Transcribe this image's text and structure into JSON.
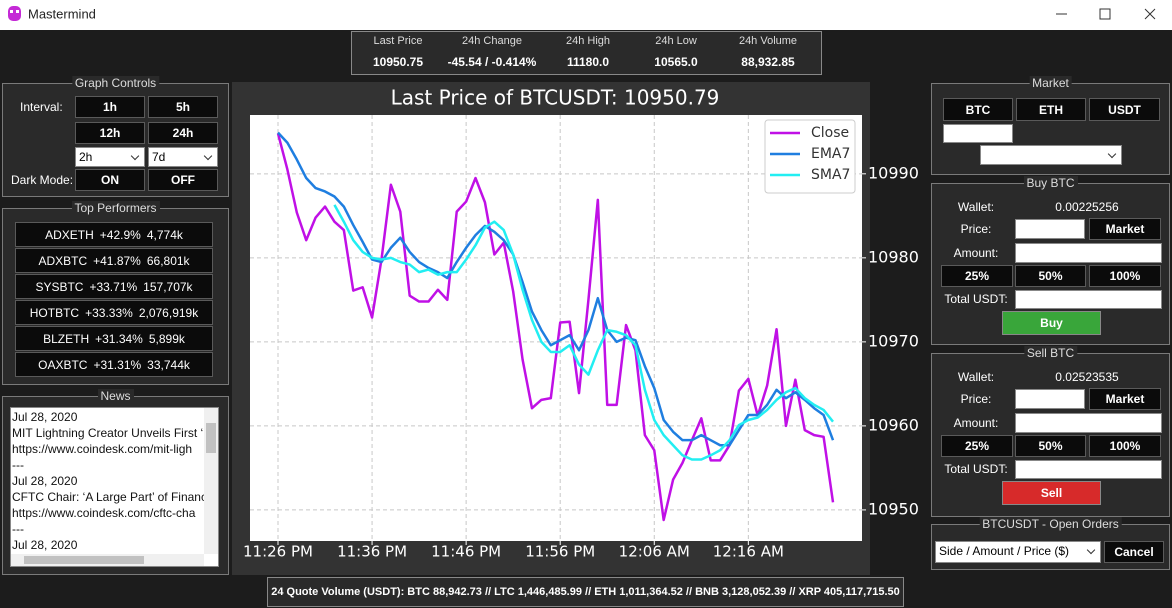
{
  "window": {
    "title": "Mastermind"
  },
  "ticker": {
    "headers": [
      "Last Price",
      "24h Change",
      "24h High",
      "24h Low",
      "24h Volume"
    ],
    "values": [
      "10950.75",
      "-45.54 / -0.414%",
      "11180.0",
      "10565.0",
      "88,932.85"
    ]
  },
  "graph_controls": {
    "title": "Graph Controls",
    "interval_label": "Interval:",
    "buttons": [
      "1h",
      "5h",
      "12h",
      "24h"
    ],
    "selects": [
      "2h",
      "7d"
    ],
    "dark_mode_label": "Dark Mode:",
    "dark_buttons": [
      "ON",
      "OFF"
    ]
  },
  "top_performers": {
    "title": "Top Performers",
    "rows": [
      [
        "ADXETH",
        "+42.9%",
        "4,774k"
      ],
      [
        "ADXBTC",
        "+41.87%",
        "66,801k"
      ],
      [
        "SYSBTC",
        "+33.71%",
        "157,707k"
      ],
      [
        "HOTBTC",
        "+33.33%",
        "2,076,919k"
      ],
      [
        "BLZETH",
        "+31.34%",
        "5,899k"
      ],
      [
        "OAXBTC",
        "+31.31%",
        "33,744k"
      ]
    ]
  },
  "news": {
    "title": "News",
    "lines": [
      "Jul 28, 2020",
      "MIT Lightning Creator Unveils First ‘D",
      "https://www.coindesk.com/mit-ligh",
      "---",
      "Jul 28, 2020",
      "CFTC Chair: ‘A Large Part’ of Financi",
      "https://www.coindesk.com/cftc-cha",
      "---",
      "Jul 28, 2020"
    ]
  },
  "market": {
    "title": "Market",
    "buttons": [
      "BTC",
      "ETH",
      "USDT"
    ]
  },
  "buy": {
    "title": "Buy BTC",
    "wallet_label": "Wallet:",
    "wallet": "0.00225256",
    "price_label": "Price:",
    "market_button": "Market",
    "amount_label": "Amount:",
    "percent_buttons": [
      "25%",
      "50%",
      "100%"
    ],
    "total_label": "Total USDT:",
    "action": "Buy"
  },
  "sell": {
    "title": "Sell BTC",
    "wallet_label": "Wallet:",
    "wallet": "0.02523535",
    "price_label": "Price:",
    "market_button": "Market",
    "amount_label": "Amount:",
    "percent_buttons": [
      "25%",
      "50%",
      "100%"
    ],
    "total_label": "Total USDT:",
    "action": "Sell"
  },
  "orders": {
    "title": "BTCUSDT - Open Orders",
    "select": "Side / Amount / Price ($)",
    "cancel": "Cancel"
  },
  "footer": {
    "text": "24 Quote Volume (USDT): BTC 88,942.73 // LTC 1,446,485.99 // ETH 1,011,364.52 // BNB 3,128,052.39 // XRP 405,117,715.50"
  },
  "chart_data": {
    "type": "line",
    "title": "Last Price of BTCUSDT: 10950.79",
    "x": [
      "11:26 PM",
      "11:27 PM",
      "11:28 PM",
      "11:29 PM",
      "11:30 PM",
      "11:31 PM",
      "11:32 PM",
      "11:33 PM",
      "11:34 PM",
      "11:35 PM",
      "11:36 PM",
      "11:37 PM",
      "11:38 PM",
      "11:39 PM",
      "11:40 PM",
      "11:41 PM",
      "11:42 PM",
      "11:43 PM",
      "11:44 PM",
      "11:45 PM",
      "11:46 PM",
      "11:47 PM",
      "11:48 PM",
      "11:49 PM",
      "11:50 PM",
      "11:51 PM",
      "11:52 PM",
      "11:53 PM",
      "11:54 PM",
      "11:55 PM",
      "11:56 PM",
      "11:57 PM",
      "11:58 PM",
      "11:59 PM",
      "12:00 AM",
      "12:01 AM",
      "12:02 AM",
      "12:03 AM",
      "12:04 AM",
      "12:05 AM",
      "12:06 AM",
      "12:07 AM",
      "12:08 AM",
      "12:09 AM",
      "12:10 AM",
      "12:11 AM",
      "12:12 AM",
      "12:13 AM",
      "12:14 AM",
      "12:15 AM",
      "12:16 AM",
      "12:17 AM",
      "12:18 AM",
      "12:19 AM",
      "12:20 AM",
      "12:21 AM",
      "12:22 AM",
      "12:23 AM",
      "12:24 AM",
      "12:25 AM"
    ],
    "xticks": [
      "11:26 PM",
      "11:36 PM",
      "11:46 PM",
      "11:56 PM",
      "12:06 AM",
      "12:16 AM"
    ],
    "series": [
      {
        "name": "Close",
        "color": "#c010e6",
        "values": [
          10994.8,
          10990.5,
          10985.4,
          10982.1,
          10984.8,
          10986.1,
          10984.3,
          10983.3,
          10976.1,
          10976.5,
          10972.9,
          10979.8,
          10988.7,
          10985.5,
          10975.5,
          10974.8,
          10974.8,
          10976.2,
          10975,
          10985.5,
          10986.7,
          10989.5,
          10986.6,
          10980.4,
          10981.8,
          10976,
          10967.9,
          10962.1,
          10963.1,
          10963.3,
          10972.3,
          10972.4,
          10963.9,
          10975,
          10986.9,
          10962.5,
          10962.5,
          10972,
          10969,
          10958.9,
          10957.1,
          10948.8,
          10953.6,
          10955.6,
          10958.3,
          10960.9,
          10955.9,
          10955.9,
          10957.7,
          10964.2,
          10965.6,
          10961.2,
          10964.8,
          10971.5,
          10960,
          10965.5,
          10959.5,
          10958.9,
          10958.7,
          10950.9
        ]
      },
      {
        "name": "EMA7",
        "color": "#1f7ee0",
        "values": [
          10994.9,
          10993.7,
          10991.7,
          10989.5,
          10988.3,
          10987.9,
          10987.3,
          10986.1,
          10983.9,
          10981.9,
          10979.8,
          10979.5,
          10981.2,
          10982.4,
          10980.7,
          10979.5,
          10978.8,
          10978.3,
          10977.6,
          10979.5,
          10981.2,
          10982.7,
          10983.8,
          10983.1,
          10982.1,
          10980.4,
          10977.1,
          10973.6,
          10971.4,
          10969.6,
          10970.2,
          10970.8,
          10969,
          10971.4,
          10975.2,
          10971.4,
          10970,
          10970.5,
          10970.2,
          10967.1,
          10964.5,
          10960.7,
          10959.3,
          10958.3,
          10958.3,
          10958.9,
          10958.3,
          10957.7,
          10957.7,
          10959.5,
          10961.3,
          10961.3,
          10962.5,
          10964.3,
          10963.3,
          10964,
          10963.1,
          10962.1,
          10961.3,
          10958.3
        ]
      },
      {
        "name": "SMA7",
        "color": "#22eef2",
        "values": [
          null,
          null,
          null,
          null,
          null,
          null,
          10986.3,
          10984.3,
          10982.1,
          10980.7,
          10980,
          10979.8,
          10980,
          10979.5,
          10979.2,
          10978.3,
          10978.6,
          10978,
          10978.3,
          10978.3,
          10979.8,
          10981.5,
          10983.6,
          10984.3,
          10983.3,
          10980.4,
          10976.2,
          10972.6,
          10970,
          10968.8,
          10968.8,
          10969.6,
          10967.3,
          10966.1,
          10969,
          10971.4,
          10971.2,
          10970.8,
          10969.6,
          10964.3,
          10960.7,
          10958.9,
          10957.7,
          10956.5,
          10956,
          10956,
          10956.5,
          10957.1,
          10958.3,
          10960.1,
          10960.7,
          10961,
          10961.9,
          10963.1,
          10964,
          10964.5,
          10963.3,
          10962.5,
          10961.9,
          10960.5
        ]
      }
    ],
    "ylim": [
      10946.3,
      10997
    ],
    "yticks": [
      10950,
      10960,
      10970,
      10980,
      10990
    ],
    "grid": true,
    "legend": "upper right"
  }
}
